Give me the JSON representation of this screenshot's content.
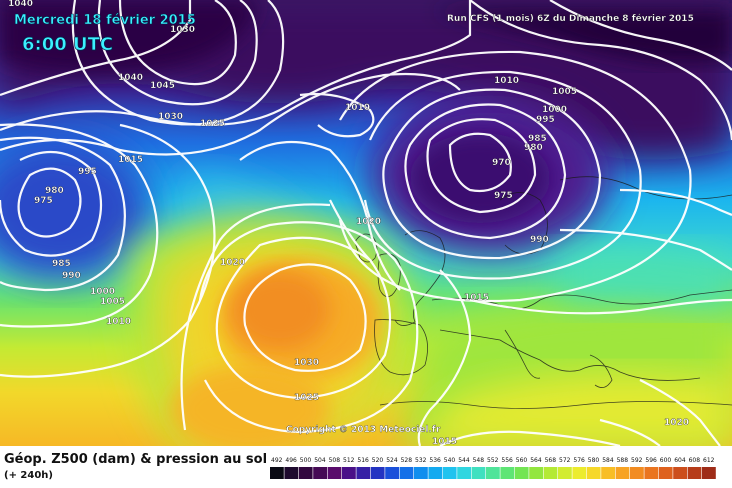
{
  "header": {
    "date_line": "Mercredi 18 février 2015",
    "time_line": "6:00 UTC",
    "run_info": "Run CFS (1 mois) 6Z du Dimanche 8 février 2015"
  },
  "copyright": "Copyright © 2013 Meteociel.fr",
  "footer": {
    "legend_title": "Géop. Z500 (dam) & pression au sol",
    "lead_time": "(+ 240h)"
  },
  "scale": {
    "labels": [
      "492",
      "496",
      "500",
      "504",
      "508",
      "512",
      "516",
      "520",
      "524",
      "528",
      "532",
      "536",
      "540",
      "544",
      "548",
      "552",
      "556",
      "560",
      "564",
      "568",
      "572",
      "576",
      "580",
      "584",
      "588",
      "592",
      "596",
      "600",
      "604",
      "608",
      "612"
    ],
    "colors": [
      "#0a0a14",
      "#1e0a2e",
      "#32083f",
      "#460a55",
      "#5a0c6c",
      "#4a1088",
      "#3620a5",
      "#2434c2",
      "#1a50da",
      "#1570e8",
      "#108eee",
      "#14aaf0",
      "#20c3ef",
      "#30d6e0",
      "#40e0c0",
      "#50e49a",
      "#5ee575",
      "#73e554",
      "#93e63f",
      "#b4ea35",
      "#d2ec31",
      "#ecec2e",
      "#f6d82a",
      "#f8be26",
      "#f7a324",
      "#f28c22",
      "#ea7520",
      "#de611e",
      "#cc4e1c",
      "#b63c1a",
      "#9e2c18"
    ]
  },
  "isobar_labels": [
    "1040",
    "1030",
    "1040",
    "1045",
    "1030",
    "1025",
    "1015",
    "995",
    "980",
    "975",
    "985",
    "990",
    "1000",
    "1005",
    "1010",
    "1010",
    "1010",
    "1005",
    "1000",
    "995",
    "985",
    "980",
    "970",
    "975",
    "990",
    "1020",
    "1020",
    "1015",
    "1030",
    "1025",
    "1015",
    "1020"
  ]
}
